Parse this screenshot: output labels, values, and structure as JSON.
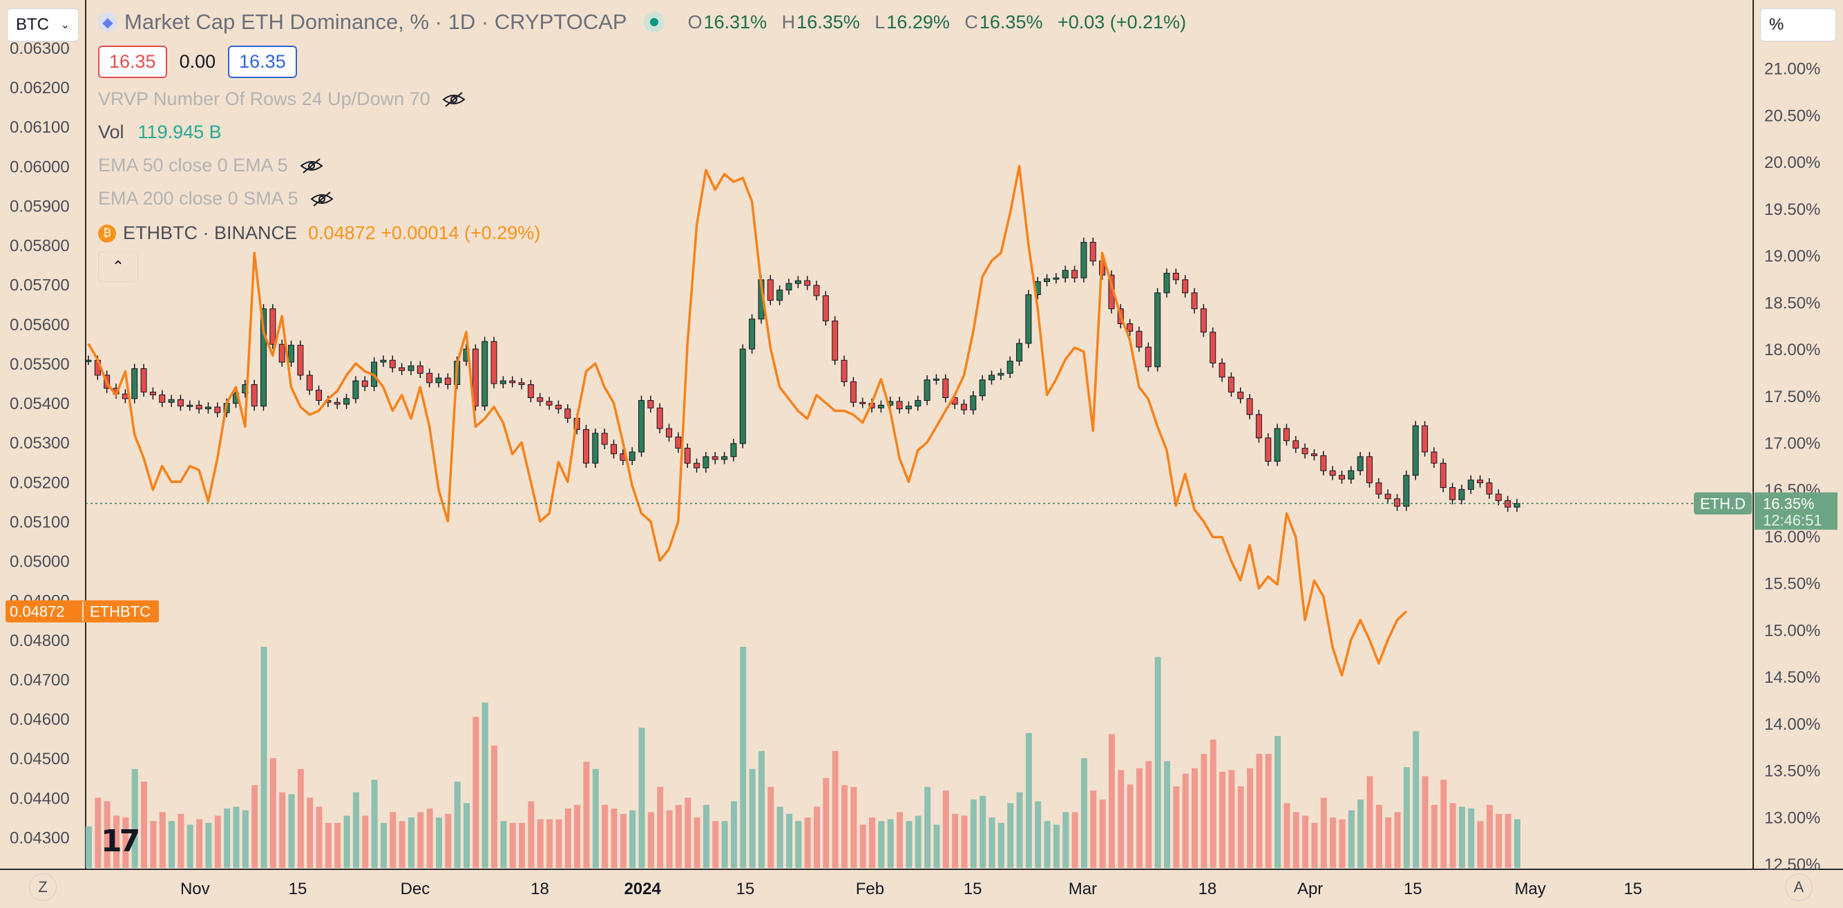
{
  "header": {
    "symbol_input": "BTC",
    "unit_button": "%",
    "title": "Market Cap ETH Dominance, % · 1D · CRYPTOCAP",
    "ohlc": {
      "o_label": "O",
      "o": "16.31%",
      "h_label": "H",
      "h": "16.35%",
      "l_label": "L",
      "l": "16.29%",
      "c_label": "C",
      "c": "16.35%",
      "change": "+0.03 (+0.21%)"
    },
    "price_boxes": {
      "bid": "16.35",
      "spread": "0.00",
      "ask": "16.35"
    }
  },
  "indicators": {
    "vrvp": "VRVP Number Of Rows 24 Up/Down 70",
    "vol_label": "Vol",
    "vol_value": "119.945 B",
    "ema50": "EMA 50 close 0 EMA 5",
    "ema200": "EMA 200 close 0 SMA 5",
    "ethbtc_label": "ETHBTC · BINANCE",
    "ethbtc_value": "0.04872 +0.00014 (+0.29%)"
  },
  "corner_buttons": {
    "left": "Z",
    "right": "A"
  },
  "colors": {
    "background": "#f3e1cf",
    "up": "#2e7d5b",
    "down": "#e34d4d",
    "ethbtc_line": "#f7821b",
    "vol_up": "#8cc0b0",
    "vol_down": "#f09a8f",
    "last_price_bg": "#6da584"
  },
  "chart_data": {
    "type": "candlestick",
    "title": "Market Cap ETH Dominance, % · 1D · CRYPTOCAP",
    "x_axis": {
      "tick_labels": [
        "Nov",
        "15",
        "Dec",
        "18",
        "2024",
        "15",
        "Feb",
        "15",
        "Mar",
        "18",
        "Apr",
        "15",
        "May",
        "15"
      ],
      "range": [
        "2023-10-17",
        "2024-05-28"
      ]
    },
    "right_axis": {
      "unit": "%",
      "range": [
        12.5,
        21.5
      ],
      "tick_labels": [
        "21.00%",
        "20.50%",
        "20.00%",
        "19.50%",
        "19.00%",
        "18.50%",
        "18.00%",
        "17.50%",
        "17.00%",
        "16.50%",
        "16.00%",
        "15.50%",
        "15.00%",
        "14.50%",
        "14.00%",
        "13.50%",
        "13.00%",
        "12.50%"
      ]
    },
    "left_axis": {
      "range": [
        0.0425,
        0.0637
      ],
      "tick_labels": [
        "0.06300",
        "0.06200",
        "0.06100",
        "0.06000",
        "0.05900",
        "0.05800",
        "0.05700",
        "0.05600",
        "0.05500",
        "0.05400",
        "0.05300",
        "0.05200",
        "0.05100",
        "0.05000",
        "0.04900",
        "0.04800",
        "0.04700",
        "0.04600",
        "0.04500",
        "0.04400",
        "0.04300"
      ]
    },
    "eth_dominance_close": [
      17.88,
      17.72,
      17.58,
      17.52,
      17.47,
      17.79,
      17.54,
      17.51,
      17.43,
      17.46,
      17.39,
      17.4,
      17.36,
      17.38,
      17.32,
      17.42,
      17.53,
      17.62,
      17.39,
      18.43,
      18.05,
      17.86,
      18.04,
      17.72,
      17.56,
      17.45,
      17.43,
      17.41,
      17.47,
      17.66,
      17.6,
      17.86,
      17.88,
      17.8,
      17.77,
      17.82,
      17.74,
      17.64,
      17.69,
      17.62,
      17.87,
      18.0,
      17.39,
      18.08,
      17.63,
      17.66,
      17.64,
      17.62,
      17.48,
      17.44,
      17.4,
      17.36,
      17.26,
      17.14,
      16.78,
      17.1,
      16.98,
      16.88,
      16.81,
      16.9,
      17.45,
      17.37,
      17.15,
      17.06,
      16.94,
      16.78,
      16.73,
      16.85,
      16.82,
      16.85,
      16.99,
      18.0,
      18.32,
      18.74,
      18.52,
      18.63,
      18.7,
      18.73,
      18.68,
      18.57,
      18.3,
      17.88,
      17.65,
      17.43,
      17.42,
      17.37,
      17.4,
      17.44,
      17.36,
      17.39,
      17.45,
      17.67,
      17.68,
      17.48,
      17.41,
      17.35,
      17.5,
      17.67,
      17.72,
      17.74,
      17.87,
      18.06,
      18.58,
      18.72,
      18.75,
      18.76,
      18.84,
      18.76,
      19.14,
      18.94,
      18.79,
      18.43,
      18.27,
      18.19,
      18.02,
      17.81,
      18.6,
      18.81,
      18.74,
      18.6,
      18.43,
      18.18,
      17.85,
      17.7,
      17.54,
      17.47,
      17.3,
      17.05,
      16.8,
      17.15,
      17.02,
      16.94,
      16.88,
      16.86,
      16.7,
      16.65,
      16.61,
      16.7,
      16.85,
      16.57,
      16.45,
      16.4,
      16.32,
      16.65,
      17.18,
      16.9,
      16.78,
      16.52,
      16.39,
      16.5,
      16.6,
      16.57,
      16.45,
      16.38,
      16.31,
      16.35
    ],
    "ethbtc_line": [
      0.0555,
      0.0551,
      0.0545,
      0.0542,
      0.0548,
      0.0532,
      0.0526,
      0.0518,
      0.0524,
      0.052,
      0.052,
      0.0524,
      0.0523,
      0.0515,
      0.0526,
      0.054,
      0.0544,
      0.0534,
      0.0578,
      0.0558,
      0.0552,
      0.0562,
      0.0544,
      0.0539,
      0.0537,
      0.0538,
      0.0541,
      0.0543,
      0.0547,
      0.055,
      0.0548,
      0.0547,
      0.0544,
      0.0538,
      0.0542,
      0.0536,
      0.0544,
      0.0534,
      0.0518,
      0.051,
      0.055,
      0.0558,
      0.0534,
      0.0536,
      0.0539,
      0.0535,
      0.0527,
      0.053,
      0.052,
      0.051,
      0.0512,
      0.0525,
      0.052,
      0.0536,
      0.0548,
      0.055,
      0.0544,
      0.054,
      0.053,
      0.0519,
      0.0512,
      0.051,
      0.05,
      0.0503,
      0.051,
      0.0555,
      0.0585,
      0.0599,
      0.0594,
      0.0598,
      0.0596,
      0.0597,
      0.0591,
      0.057,
      0.0554,
      0.0544,
      0.0541,
      0.0538,
      0.0536,
      0.0542,
      0.054,
      0.0538,
      0.0538,
      0.0537,
      0.0535,
      0.054,
      0.0546,
      0.0538,
      0.0526,
      0.052,
      0.0528,
      0.053,
      0.0534,
      0.0538,
      0.0542,
      0.0547,
      0.0558,
      0.0572,
      0.0576,
      0.0578,
      0.0588,
      0.06,
      0.058,
      0.0564,
      0.0542,
      0.0546,
      0.0551,
      0.0554,
      0.0553,
      0.0533,
      0.0578,
      0.057,
      0.0562,
      0.0556,
      0.0544,
      0.0541,
      0.0534,
      0.0528,
      0.0514,
      0.0522,
      0.0513,
      0.051,
      0.0506,
      0.0506,
      0.05,
      0.0495,
      0.0504,
      0.0493,
      0.0496,
      0.0494,
      0.0512,
      0.0506,
      0.0485,
      0.0495,
      0.0491,
      0.0478,
      0.0471,
      0.048,
      0.0485,
      0.048,
      0.0474,
      0.048,
      0.0485,
      0.04872
    ],
    "volume_tick_labels": "none",
    "last_price_labels": {
      "eth_d": {
        "label": "ETH.D",
        "value": "16.35%",
        "countdown": "12:46:51"
      },
      "ethbtc": {
        "value": "0.04872",
        "label": "ETHBTC"
      }
    }
  }
}
